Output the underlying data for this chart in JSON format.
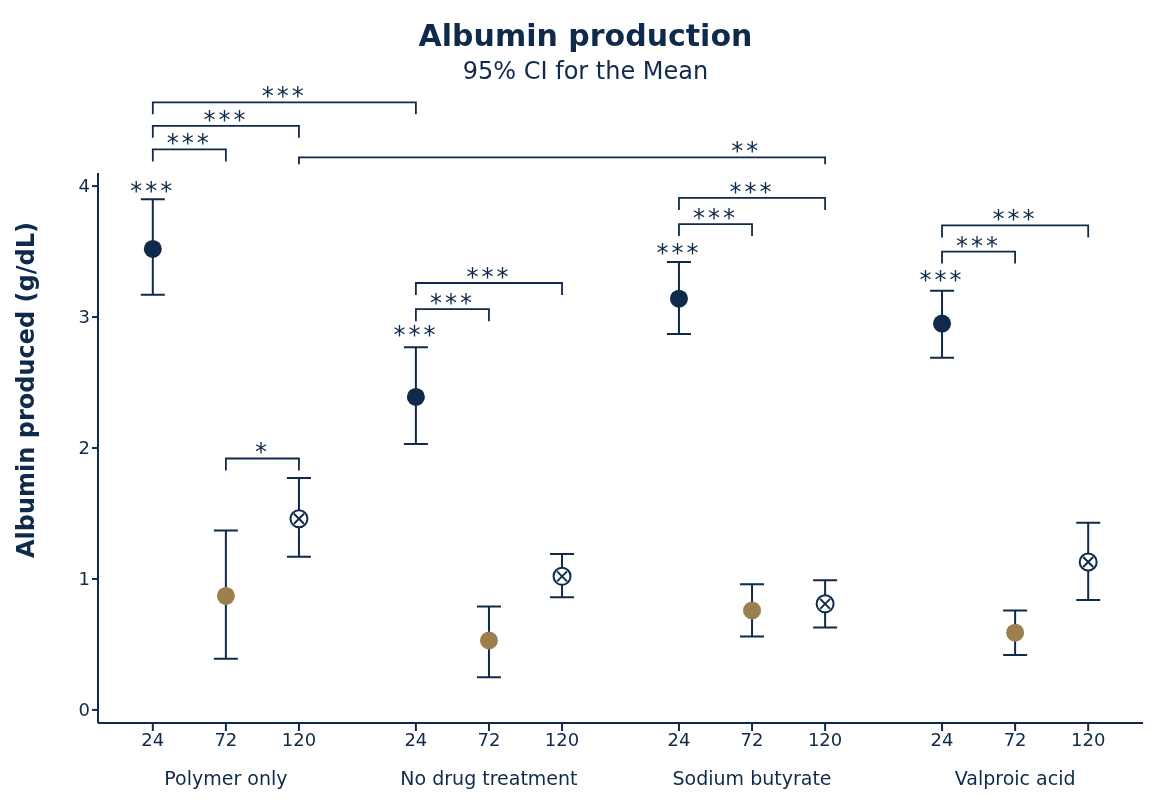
{
  "chart_data": {
    "type": "scatter",
    "title": "Albumin production",
    "subtitle": "95% CI for the Mean",
    "ylabel": "Albumin produced (g/dL)",
    "categories": [
      "24",
      "72",
      "120",
      "24",
      "72",
      "120",
      "24",
      "72",
      "120",
      "24",
      "72",
      "120"
    ],
    "series": [
      {
        "color": "#0f2a4a",
        "marker": "circle",
        "values": [
          3.52,
          null,
          null,
          2.39,
          null,
          null,
          3.14,
          null,
          null,
          2.95,
          null,
          null
        ],
        "errors": [
          [
            3.17,
            3.9
          ],
          null,
          null,
          [
            2.03,
            2.77
          ],
          null,
          null,
          [
            2.87,
            3.42
          ],
          null,
          null,
          [
            2.69,
            3.2
          ],
          null,
          null
        ]
      },
      {
        "color": "#9c7f4e",
        "marker": "circle",
        "values": [
          null,
          0.87,
          null,
          null,
          0.53,
          null,
          null,
          0.76,
          null,
          null,
          0.59,
          null
        ],
        "errors": [
          null,
          [
            0.39,
            1.37
          ],
          null,
          null,
          [
            0.25,
            0.79
          ],
          null,
          null,
          [
            0.56,
            0.96
          ],
          null,
          null,
          [
            0.42,
            0.76
          ],
          null
        ]
      },
      {
        "color": "#0f2a4a",
        "values": [
          null,
          null,
          1.46,
          null,
          null,
          1.02,
          null,
          null,
          0.81,
          null,
          null,
          1.13
        ],
        "errors": [
          null,
          null,
          [
            1.17,
            1.77
          ],
          null,
          null,
          [
            0.86,
            1.19
          ],
          null,
          null,
          [
            0.63,
            0.99
          ],
          null,
          null,
          [
            0.84,
            1.43
          ]
        ]
      }
    ],
    "ylim": [
      -0.1,
      4.1
    ],
    "yticks": [
      0,
      1,
      2,
      3,
      4
    ],
    "annotations": [
      "Polymer only",
      "No drug treatment",
      "Sodium butyrate",
      "Valproic acid",
      "***",
      "***",
      "***",
      "***",
      "**",
      "*",
      "***",
      "***",
      "***",
      "***",
      "***",
      "***",
      "***",
      "***",
      "***"
    ]
  }
}
